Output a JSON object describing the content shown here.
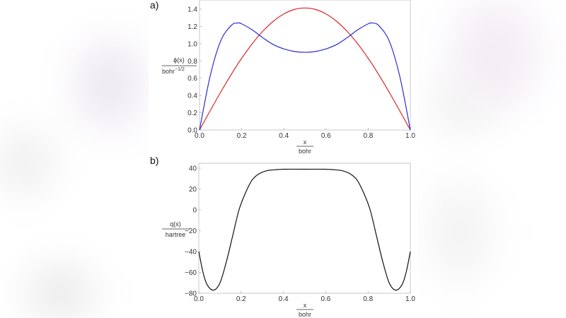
{
  "figure": {
    "panel_a": {
      "label": "a)",
      "ylabel_numerator": "ϕ(x)",
      "ylabel_denominator": "bohr",
      "ylabel_exponent": "−1/2",
      "xlabel_numerator": "x",
      "xlabel_denominator": "bohr",
      "xticks": [
        "0.0",
        "0.2",
        "0.4",
        "0.6",
        "0.8",
        "1.0"
      ],
      "yticks": [
        "0.0",
        "0.2",
        "0.4",
        "0.6",
        "0.8",
        "1.0",
        "1.2",
        "1.4"
      ],
      "colors": {
        "red": "#d62728",
        "blue": "#2b2bd4"
      }
    },
    "panel_b": {
      "label": "b)",
      "ylabel_numerator": "q(x)",
      "ylabel_denominator": "hartree",
      "xlabel_numerator": "x",
      "xlabel_denominator": "bohr",
      "xticks": [
        "0.0",
        "0.2",
        "0.4",
        "0.6",
        "0.8",
        "1.0"
      ],
      "yticks": [
        "40",
        "20",
        "0",
        "-20",
        "-40",
        "-60",
        "-80"
      ],
      "colors": {
        "line": "#111111"
      }
    }
  },
  "chart_data": [
    {
      "type": "line",
      "title": "a)",
      "xlabel": "x / bohr",
      "ylabel": "ϕ(x) / bohr^-1/2",
      "xlim": [
        0,
        1
      ],
      "ylim": [
        0,
        1.5
      ],
      "grid": false,
      "x": [
        0.0,
        0.05,
        0.1,
        0.15,
        0.18,
        0.2,
        0.25,
        0.3,
        0.35,
        0.4,
        0.45,
        0.5,
        0.55,
        0.6,
        0.65,
        0.7,
        0.75,
        0.8,
        0.82,
        0.85,
        0.9,
        0.95,
        1.0
      ],
      "series": [
        {
          "name": "red",
          "color": "#d62728",
          "values": [
            0.0,
            0.221,
            0.437,
            0.642,
            0.759,
            0.831,
            1.0,
            1.144,
            1.26,
            1.345,
            1.397,
            1.414,
            1.397,
            1.345,
            1.26,
            1.144,
            1.0,
            0.831,
            0.759,
            0.642,
            0.437,
            0.221,
            0.0
          ]
        },
        {
          "name": "blue",
          "color": "#2b2bd4",
          "values": [
            0.0,
            0.62,
            1.03,
            1.21,
            1.24,
            1.23,
            1.16,
            1.07,
            0.99,
            0.94,
            0.91,
            0.9,
            0.91,
            0.94,
            0.99,
            1.07,
            1.16,
            1.23,
            1.24,
            1.21,
            1.03,
            0.62,
            0.0
          ]
        }
      ]
    },
    {
      "type": "line",
      "title": "b)",
      "xlabel": "x / bohr",
      "ylabel": "q(x) / hartree",
      "xlim": [
        0,
        1
      ],
      "ylim": [
        -80,
        42
      ],
      "grid": false,
      "x": [
        0.0,
        0.02,
        0.04,
        0.07,
        0.1,
        0.13,
        0.16,
        0.19,
        0.22,
        0.25,
        0.28,
        0.32,
        0.36,
        0.4,
        0.5,
        0.6,
        0.64,
        0.68,
        0.72,
        0.75,
        0.78,
        0.81,
        0.84,
        0.87,
        0.9,
        0.93,
        0.96,
        0.98,
        1.0
      ],
      "series": [
        {
          "name": "q(x)",
          "color": "#111111",
          "values": [
            -40,
            -60,
            -72,
            -77,
            -70,
            -50,
            -25,
            0,
            16,
            28,
            34,
            37.5,
            38.5,
            39,
            39,
            39,
            38.5,
            37.5,
            34,
            28,
            16,
            0,
            -25,
            -50,
            -70,
            -77,
            -72,
            -60,
            -40
          ]
        }
      ]
    }
  ]
}
